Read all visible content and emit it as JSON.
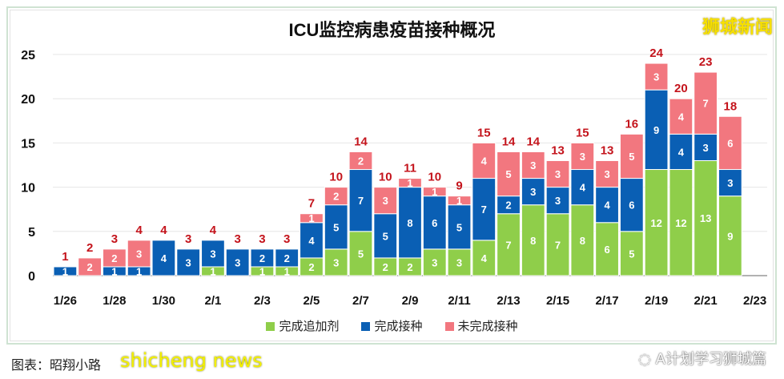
{
  "brand_watermark": "狮城新闻",
  "credit": "图表：昭翔小路",
  "credit_watermark": "shicheng news",
  "wechat_watermark": "A计划学习狮城篇",
  "colors": {
    "booster": "#8fce4a",
    "vaccinated": "#0a5fb4",
    "unvaccinated": "#f2777f",
    "total_label": "#c4141c"
  },
  "chart_data": {
    "type": "bar",
    "stacked": true,
    "title": "ICU监控病患疫苗接种概况",
    "xlabel": "",
    "ylabel": "",
    "ylim": [
      0,
      25
    ],
    "yticks": [
      0,
      5,
      10,
      15,
      20,
      25
    ],
    "grid": true,
    "legend_placement": "bottom",
    "categories": [
      "1/26",
      "1/27",
      "1/28",
      "1/29",
      "1/30",
      "1/31",
      "2/1",
      "2/2",
      "2/3",
      "2/4",
      "2/5",
      "2/6",
      "2/7",
      "2/8",
      "2/9",
      "2/10",
      "2/11",
      "2/12",
      "2/13",
      "2/14",
      "2/15",
      "2/16",
      "2/17",
      "2/18",
      "2/19",
      "2/20",
      "2/21",
      "2/22",
      "2/23"
    ],
    "tick_labels": [
      "1/26",
      "1/28",
      "1/30",
      "2/1",
      "2/3",
      "2/5",
      "2/7",
      "2/9",
      "2/11",
      "2/13",
      "2/15",
      "2/17",
      "2/19",
      "2/21",
      "2/23"
    ],
    "series": [
      {
        "name": "完成追加剂",
        "values": [
          0,
          0,
          0,
          0,
          0,
          0,
          1,
          0,
          1,
          1,
          2,
          3,
          5,
          2,
          2,
          3,
          3,
          4,
          7,
          8,
          7,
          8,
          6,
          5,
          12,
          12,
          13,
          9,
          null
        ]
      },
      {
        "name": "完成接种",
        "values": [
          1,
          0,
          1,
          1,
          4,
          3,
          3,
          3,
          2,
          2,
          4,
          5,
          7,
          5,
          8,
          6,
          5,
          7,
          2,
          3,
          3,
          4,
          4,
          6,
          9,
          4,
          3,
          3,
          null
        ]
      },
      {
        "name": "未完成接种",
        "values": [
          0,
          2,
          2,
          3,
          0,
          0,
          0,
          0,
          0,
          0,
          1,
          2,
          2,
          3,
          1,
          1,
          1,
          4,
          5,
          3,
          3,
          3,
          3,
          5,
          3,
          4,
          7,
          6,
          null
        ]
      }
    ],
    "totals": [
      1,
      2,
      3,
      4,
      4,
      3,
      4,
      3,
      3,
      3,
      7,
      10,
      14,
      10,
      11,
      10,
      9,
      15,
      14,
      14,
      13,
      15,
      13,
      16,
      24,
      20,
      23,
      18,
      null
    ]
  }
}
